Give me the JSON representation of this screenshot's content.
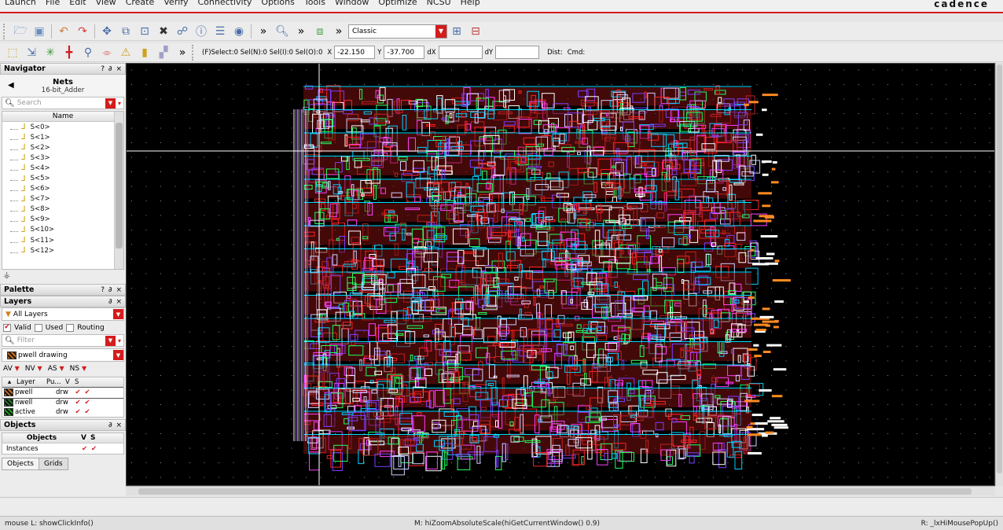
{
  "menu": {
    "items": [
      "Launch",
      "File",
      "Edit",
      "View",
      "Create",
      "Verify",
      "Connectivity",
      "Options",
      "Tools",
      "Window",
      "Optimize",
      "NCSU",
      "Help"
    ],
    "brand": "cadence"
  },
  "toolbar1": {
    "workspace_combo": "Classic",
    "icons": [
      "open-icon",
      "save-icon",
      "undo-icon",
      "redo-icon",
      "move-icon",
      "copy-icon",
      "stretch-icon",
      "delete-icon",
      "properties-icon",
      "info-icon",
      "align-icon",
      "zoom-fit-icon",
      "zoom-icon",
      "create-inst-icon",
      "layout-icon",
      "exit-icon"
    ]
  },
  "toolbar2": {
    "status": "(F)Select:0  Sel(N):0  Sel(I):0  Sel(O):0",
    "x_label": "X",
    "x_value": "-22.150",
    "y_label": "Y",
    "y_value": "-37.700",
    "dx_label": "dX",
    "dx_value": "",
    "dy_label": "dY",
    "dy_value": "",
    "dist_label": "Dist:",
    "cmd_label": "Cmd:"
  },
  "navigator": {
    "title": "Navigator",
    "controls": "? ∂ ×",
    "heading": "Nets",
    "cell": "16-bit_Adder",
    "search_placeholder": "Search",
    "column": "Name",
    "items": [
      "S<0>",
      "S<1>",
      "S<2>",
      "S<3>",
      "S<4>",
      "S<5>",
      "S<6>",
      "S<7>",
      "S<8>",
      "S<9>",
      "S<10>",
      "S<11>",
      "S<12>"
    ]
  },
  "palette": {
    "title": "Palette",
    "controls": "? ∂ ×"
  },
  "layers": {
    "title": "Layers",
    "controls": "∂ ×",
    "filter": "All Layers",
    "valid": "Valid",
    "used": "Used",
    "routing": "Routing",
    "filter_placeholder": "Filter",
    "current_layer": "pwell drawing",
    "av_row": [
      "AV",
      "NV",
      "AS",
      "NS"
    ],
    "columns": [
      "Layer",
      "Pu...",
      "V",
      "S"
    ],
    "rows": [
      {
        "name": "pwell",
        "purpose": "drw",
        "color": "#c87028"
      },
      {
        "name": "nwell",
        "purpose": "drw",
        "color": "#2a7a2a"
      },
      {
        "name": "active",
        "purpose": "drw",
        "color": "#1ea81e"
      }
    ]
  },
  "objects": {
    "title": "Objects",
    "controls": "∂ ×",
    "columns": [
      "Objects",
      "V",
      "S"
    ],
    "rows": [
      "Instances"
    ]
  },
  "tabs": [
    "Objects",
    "Grids"
  ],
  "status": {
    "left": "mouse L: showClickInfo()",
    "middle": "M: hiZoomAbsoluteScale(hiGetCurrentWindow() 0.9)",
    "right": "R: _lxHiMousePopUp()"
  },
  "colors": {
    "accent": "#d41c1c",
    "canvas": "#000000"
  }
}
